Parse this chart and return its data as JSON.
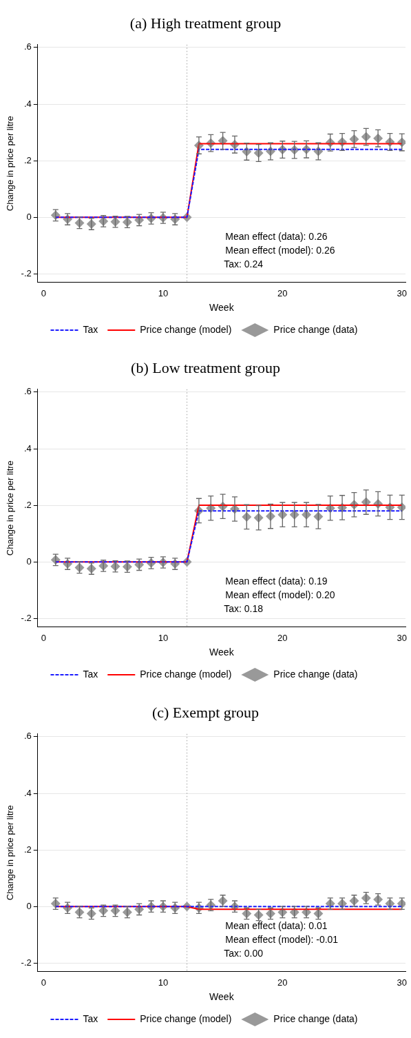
{
  "chart_data": [
    {
      "type": "line",
      "title": "(a) High treatment group",
      "xlabel": "Week",
      "ylabel": "Change in price per litre",
      "x": [
        1,
        2,
        3,
        4,
        5,
        6,
        7,
        8,
        9,
        10,
        11,
        12,
        13,
        14,
        15,
        16,
        17,
        18,
        19,
        20,
        21,
        22,
        23,
        24,
        25,
        26,
        27,
        28,
        29,
        30
      ],
      "xlim": [
        -0.5,
        30.3
      ],
      "xticks": [
        0,
        10,
        20,
        30
      ],
      "ylim": [
        -0.23,
        0.61
      ],
      "yticks": [
        {
          "value": -0.2,
          "label": "-.2"
        },
        {
          "value": 0,
          "label": "0"
        },
        {
          "value": 0.2,
          "label": ".2"
        },
        {
          "value": 0.4,
          "label": ".4"
        },
        {
          "value": 0.6,
          "label": ".6"
        }
      ],
      "grid": "y",
      "legend": "bottom",
      "ref_lines": [
        {
          "axis": "x",
          "value": 12,
          "color": "#a0a0a0",
          "line_style": "dotted"
        }
      ],
      "annotations": [
        "Mean effect (data): 0.26",
        "Mean effect (model): 0.26",
        "Tax: 0.24"
      ],
      "series": [
        {
          "name": "Tax",
          "type": "line",
          "color": "#1a1aff",
          "line_style": "dashed",
          "marker": "none",
          "values": [
            0,
            0,
            0,
            0,
            0,
            0,
            0,
            0,
            0,
            0,
            0,
            0,
            0.24,
            0.24,
            0.24,
            0.24,
            0.24,
            0.24,
            0.24,
            0.24,
            0.24,
            0.24,
            0.24,
            0.24,
            0.24,
            0.24,
            0.24,
            0.24,
            0.24,
            0.24
          ]
        },
        {
          "name": "Price change (model)",
          "type": "line",
          "color": "#ff0000",
          "line_style": "solid",
          "marker": "none",
          "values": [
            0,
            0,
            0,
            0,
            0,
            0,
            0,
            0,
            0,
            0,
            0,
            0,
            0.26,
            0.26,
            0.26,
            0.26,
            0.26,
            0.26,
            0.26,
            0.26,
            0.26,
            0.26,
            0.26,
            0.26,
            0.26,
            0.26,
            0.26,
            0.26,
            0.26,
            0.26
          ]
        },
        {
          "name": "Price change (data)",
          "type": "scatter",
          "color": "#999999",
          "marker": "diamond",
          "values": [
            0.007,
            -0.007,
            -0.02,
            -0.024,
            -0.014,
            -0.016,
            -0.017,
            -0.01,
            -0.004,
            -0.002,
            -0.007,
            0,
            0.254,
            0.262,
            0.27,
            0.257,
            0.232,
            0.227,
            0.233,
            0.239,
            0.238,
            0.24,
            0.233,
            0.264,
            0.266,
            0.276,
            0.284,
            0.279,
            0.266,
            0.265
          ],
          "errors": [
            0.02,
            0.02,
            0.02,
            0.02,
            0.02,
            0.02,
            0.02,
            0.02,
            0.02,
            0.02,
            0.02,
            null,
            0.03,
            0.03,
            0.03,
            0.03,
            0.03,
            0.03,
            0.03,
            0.03,
            0.03,
            0.03,
            0.03,
            0.03,
            0.03,
            0.03,
            0.03,
            0.03,
            0.03,
            0.03
          ]
        }
      ]
    },
    {
      "type": "line",
      "title": "(b) Low treatment group",
      "xlabel": "Week",
      "ylabel": "Change in price per litre",
      "x": [
        1,
        2,
        3,
        4,
        5,
        6,
        7,
        8,
        9,
        10,
        11,
        12,
        13,
        14,
        15,
        16,
        17,
        18,
        19,
        20,
        21,
        22,
        23,
        24,
        25,
        26,
        27,
        28,
        29,
        30
      ],
      "xlim": [
        -0.5,
        30.3
      ],
      "xticks": [
        0,
        10,
        20,
        30
      ],
      "ylim": [
        -0.23,
        0.61
      ],
      "yticks": [
        {
          "value": -0.2,
          "label": "-.2"
        },
        {
          "value": 0,
          "label": "0"
        },
        {
          "value": 0.2,
          "label": ".2"
        },
        {
          "value": 0.4,
          "label": ".4"
        },
        {
          "value": 0.6,
          "label": ".6"
        }
      ],
      "grid": "y",
      "legend": "bottom",
      "ref_lines": [
        {
          "axis": "x",
          "value": 12,
          "color": "#a0a0a0",
          "line_style": "dotted"
        }
      ],
      "annotations": [
        "Mean effect (data): 0.19",
        "Mean effect (model): 0.20",
        "Tax: 0.18"
      ],
      "series": [
        {
          "name": "Tax",
          "type": "line",
          "color": "#1a1aff",
          "line_style": "dashed",
          "marker": "none",
          "values": [
            0,
            0,
            0,
            0,
            0,
            0,
            0,
            0,
            0,
            0,
            0,
            0,
            0.18,
            0.18,
            0.18,
            0.18,
            0.18,
            0.18,
            0.18,
            0.18,
            0.18,
            0.18,
            0.18,
            0.18,
            0.18,
            0.18,
            0.18,
            0.18,
            0.18,
            0.18
          ]
        },
        {
          "name": "Price change (model)",
          "type": "line",
          "color": "#ff0000",
          "line_style": "solid",
          "marker": "none",
          "values": [
            0,
            0,
            0,
            0,
            0,
            0,
            0,
            0,
            0,
            0,
            0,
            0,
            0.2,
            0.2,
            0.2,
            0.2,
            0.2,
            0.2,
            0.2,
            0.2,
            0.2,
            0.2,
            0.2,
            0.2,
            0.2,
            0.2,
            0.2,
            0.2,
            0.2,
            0.2
          ]
        },
        {
          "name": "Price change (data)",
          "type": "scatter",
          "color": "#999999",
          "marker": "diamond",
          "values": [
            0.007,
            -0.007,
            -0.02,
            -0.024,
            -0.014,
            -0.016,
            -0.017,
            -0.01,
            -0.004,
            -0.002,
            -0.007,
            0,
            0.181,
            0.19,
            0.196,
            0.187,
            0.159,
            0.156,
            0.161,
            0.167,
            0.167,
            0.167,
            0.16,
            0.19,
            0.192,
            0.202,
            0.211,
            0.205,
            0.193,
            0.193
          ],
          "errors": [
            0.02,
            0.02,
            0.02,
            0.02,
            0.02,
            0.02,
            0.02,
            0.02,
            0.02,
            0.02,
            0.02,
            null,
            0.043,
            0.043,
            0.043,
            0.043,
            0.043,
            0.043,
            0.043,
            0.043,
            0.043,
            0.043,
            0.043,
            0.043,
            0.043,
            0.043,
            0.043,
            0.043,
            0.043,
            0.043
          ]
        }
      ]
    },
    {
      "type": "line",
      "title": "(c) Exempt group",
      "xlabel": "Week",
      "ylabel": "Change in price per litre",
      "x": [
        1,
        2,
        3,
        4,
        5,
        6,
        7,
        8,
        9,
        10,
        11,
        12,
        13,
        14,
        15,
        16,
        17,
        18,
        19,
        20,
        21,
        22,
        23,
        24,
        25,
        26,
        27,
        28,
        29,
        30
      ],
      "xlim": [
        -0.5,
        30.3
      ],
      "xticks": [
        0,
        10,
        20,
        30
      ],
      "ylim": [
        -0.23,
        0.61
      ],
      "yticks": [
        {
          "value": -0.2,
          "label": "-.2"
        },
        {
          "value": 0,
          "label": "0"
        },
        {
          "value": 0.2,
          "label": ".2"
        },
        {
          "value": 0.4,
          "label": ".4"
        },
        {
          "value": 0.6,
          "label": ".6"
        }
      ],
      "grid": "y",
      "legend": "bottom",
      "ref_lines": [
        {
          "axis": "x",
          "value": 12,
          "color": "#a0a0a0",
          "line_style": "dotted"
        }
      ],
      "annotations": [
        "Mean effect (data): 0.01",
        "Mean effect (model): -0.01",
        "Tax: 0.00"
      ],
      "series": [
        {
          "name": "Tax",
          "type": "line",
          "color": "#1a1aff",
          "line_style": "dashed",
          "marker": "none",
          "values": [
            0,
            0,
            0,
            0,
            0,
            0,
            0,
            0,
            0,
            0,
            0,
            0,
            0,
            0,
            0,
            0,
            0,
            0,
            0,
            0,
            0,
            0,
            0,
            0,
            0,
            0,
            0,
            0,
            0,
            0
          ]
        },
        {
          "name": "Price change (model)",
          "type": "line",
          "color": "#ff0000",
          "line_style": "solid",
          "marker": "none",
          "values": [
            0,
            0,
            0,
            0,
            0,
            0,
            0,
            0,
            0,
            0,
            0,
            0,
            -0.01,
            -0.01,
            -0.01,
            -0.01,
            -0.01,
            -0.01,
            -0.01,
            -0.01,
            -0.01,
            -0.01,
            -0.01,
            -0.01,
            -0.01,
            -0.01,
            -0.01,
            -0.01,
            -0.01,
            -0.01
          ]
        },
        {
          "name": "Price change (data)",
          "type": "scatter",
          "color": "#999999",
          "marker": "diamond",
          "values": [
            0.01,
            -0.005,
            -0.02,
            -0.025,
            -0.015,
            -0.015,
            -0.02,
            -0.01,
            0,
            0,
            -0.005,
            0,
            -0.005,
            0.005,
            0.02,
            0,
            -0.025,
            -0.03,
            -0.025,
            -0.02,
            -0.02,
            -0.02,
            -0.025,
            0.01,
            0.01,
            0.02,
            0.03,
            0.025,
            0.01,
            0.01
          ],
          "errors": [
            0.02,
            0.02,
            0.02,
            0.02,
            0.02,
            0.02,
            0.02,
            0.02,
            0.02,
            0.02,
            0.02,
            null,
            0.02,
            0.02,
            0.02,
            0.02,
            0.02,
            0.02,
            0.02,
            0.02,
            0.02,
            0.02,
            0.02,
            0.02,
            0.02,
            0.02,
            0.02,
            0.02,
            0.02,
            0.02
          ]
        }
      ]
    }
  ]
}
